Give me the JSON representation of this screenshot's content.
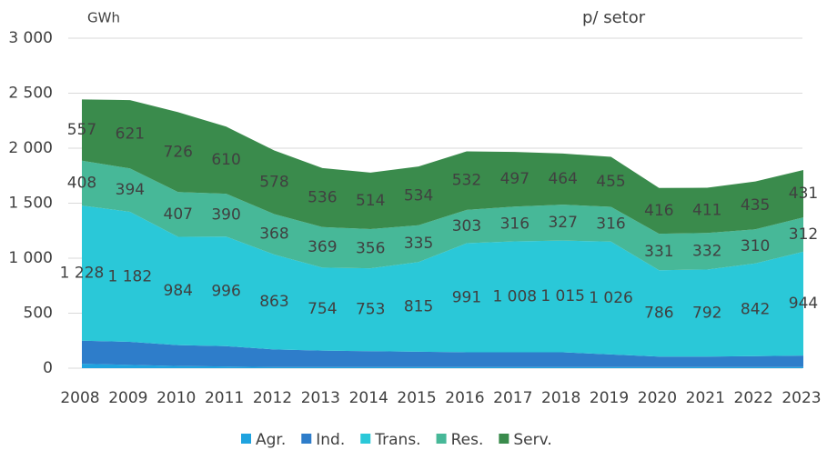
{
  "chart_data": {
    "type": "stacked_area",
    "title": "p/ setor",
    "y_label": "GWh",
    "categories": [
      "2008",
      "2009",
      "2010",
      "2011",
      "2012",
      "2013",
      "2014",
      "2015",
      "2016",
      "2017",
      "2018",
      "2019",
      "2020",
      "2021",
      "2022",
      "2023"
    ],
    "series": [
      {
        "name": "Agr.",
        "color": "#1fa3df",
        "values": [
          40,
          30,
          20,
          15,
          10,
          10,
          10,
          10,
          10,
          10,
          10,
          10,
          10,
          10,
          10,
          10
        ]
      },
      {
        "name": "Ind.",
        "color": "#2e7dca",
        "values": [
          210,
          210,
          190,
          185,
          160,
          150,
          145,
          140,
          135,
          135,
          135,
          115,
          95,
          95,
          100,
          105
        ]
      },
      {
        "name": "Trans.",
        "color": "#2ac8d8",
        "values": [
          1228,
          1182,
          984,
          996,
          863,
          754,
          753,
          815,
          991,
          1008,
          1015,
          1026,
          786,
          792,
          842,
          944
        ],
        "value_labels": [
          "1 228",
          "1 182",
          "984",
          "996",
          "863",
          "754",
          "753",
          "815",
          "991",
          "1 008",
          "1 015",
          "1 026",
          "786",
          "792",
          "842",
          "944"
        ]
      },
      {
        "name": "Res.",
        "color": "#47b898",
        "values": [
          408,
          394,
          407,
          390,
          368,
          369,
          356,
          335,
          303,
          316,
          327,
          316,
          331,
          332,
          310,
          312
        ]
      },
      {
        "name": "Serv.",
        "color": "#3a8b4c",
        "values": [
          557,
          621,
          726,
          610,
          578,
          536,
          514,
          534,
          532,
          497,
          464,
          455,
          416,
          411,
          435,
          431
        ]
      }
    ],
    "ylim": [
      0,
      3000
    ],
    "yticks": [
      0,
      500,
      {
        "value": 1000,
        "label": "1 000"
      },
      {
        "value": 1500,
        "label": "1 500"
      },
      {
        "value": 2000,
        "label": "2 000"
      },
      {
        "value": 2500,
        "label": "2 500"
      },
      {
        "value": 3000,
        "label": "3 000"
      }
    ],
    "grid": true,
    "legend": "bottom"
  }
}
